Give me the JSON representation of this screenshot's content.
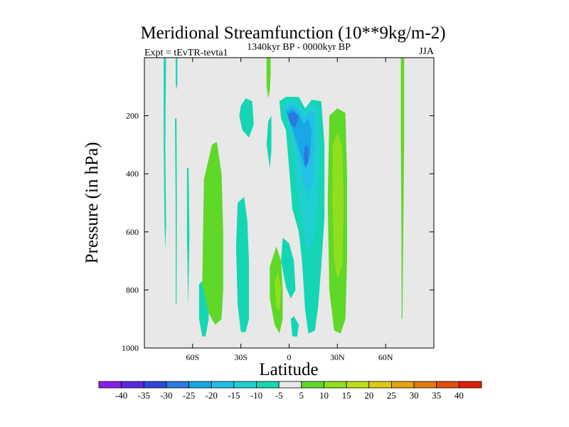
{
  "chart_data": {
    "type": "contour",
    "title": "Meridional Streamfunction (10**9kg/m-2)",
    "subtitle_left": "Expt = tEvTR-tevta1",
    "subtitle_center": "1340kyr BP - 0000kyr BP",
    "subtitle_right": "JJA",
    "xlabel": "Latitude",
    "ylabel": "Pressure (in hPa)",
    "xlim": [
      -90,
      90
    ],
    "ylim": [
      0,
      1000
    ],
    "x_ticks": [
      {
        "value": -60,
        "label": "60S"
      },
      {
        "value": -30,
        "label": "30S"
      },
      {
        "value": 0,
        "label": "0"
      },
      {
        "value": 30,
        "label": "30N"
      },
      {
        "value": 60,
        "label": "60N"
      }
    ],
    "y_ticks": [
      {
        "value": 200,
        "label": "200"
      },
      {
        "value": 400,
        "label": "400"
      },
      {
        "value": 600,
        "label": "600"
      },
      {
        "value": 800,
        "label": "800"
      },
      {
        "value": 1000,
        "label": "1000"
      }
    ],
    "colorbar": {
      "labels": [
        "-40",
        "-35",
        "-30",
        "-25",
        "-20",
        "-15",
        "-10",
        "-5",
        "5",
        "10",
        "15",
        "20",
        "25",
        "30",
        "35",
        "40"
      ],
      "colors": [
        "#8a1ee6",
        "#5a28e0",
        "#3046d8",
        "#2b78e0",
        "#19a6e4",
        "#22c0e6",
        "#1fd0d0",
        "#14d6b4",
        "#e8e8e8",
        "#5fd828",
        "#8ee01e",
        "#c0dc16",
        "#e0c810",
        "#e2a40c",
        "#e27a0c",
        "#e24e0c",
        "#e01e0a"
      ]
    },
    "background_color": "#e8e8e8",
    "regions": [
      {
        "name": "neg-5-strip-78S",
        "color": "#14d6b4",
        "points": [
          [
            -78,
            0
          ],
          [
            -76.5,
            0
          ],
          [
            -77,
            300
          ],
          [
            -76.5,
            580
          ],
          [
            -77,
            660
          ],
          [
            -77.5,
            570
          ],
          [
            -78,
            300
          ]
        ]
      },
      {
        "name": "neg-5-strip-70S-top",
        "color": "#14d6b4",
        "points": [
          [
            -70.5,
            0
          ],
          [
            -69.5,
            0
          ],
          [
            -69.5,
            90
          ],
          [
            -70,
            110
          ],
          [
            -70.5,
            90
          ]
        ]
      },
      {
        "name": "neg-5-strip-70S",
        "color": "#14d6b4",
        "points": [
          [
            -71,
            210
          ],
          [
            -70,
            210
          ],
          [
            -69.8,
            500
          ],
          [
            -70,
            850
          ],
          [
            -70.5,
            850
          ],
          [
            -70.6,
            500
          ]
        ]
      },
      {
        "name": "neg-5-strip-63S",
        "color": "#14d6b4",
        "points": [
          [
            -63.5,
            380
          ],
          [
            -62.5,
            380
          ],
          [
            -62,
            620
          ],
          [
            -62.8,
            860
          ],
          [
            -63.5,
            620
          ]
        ]
      },
      {
        "name": "neg-5-lobe-55S",
        "color": "#14d6b4",
        "points": [
          [
            -56,
            780
          ],
          [
            -52,
            760
          ],
          [
            -50,
            800
          ],
          [
            -50,
            900
          ],
          [
            -52,
            960
          ],
          [
            -54,
            960
          ],
          [
            -56,
            900
          ]
        ]
      },
      {
        "name": "neg-5-region-30S",
        "color": "#14d6b4",
        "points": [
          [
            -32,
            500
          ],
          [
            -28,
            480
          ],
          [
            -26,
            560
          ],
          [
            -25,
            700
          ],
          [
            -25,
            900
          ],
          [
            -27,
            945
          ],
          [
            -30,
            945
          ],
          [
            -32,
            850
          ],
          [
            -33,
            650
          ]
        ]
      },
      {
        "name": "neg-5-blob-30S-upper",
        "color": "#14d6b4",
        "points": [
          [
            -30,
            165
          ],
          [
            -27,
            140
          ],
          [
            -23,
            150
          ],
          [
            -22,
            230
          ],
          [
            -25,
            275
          ],
          [
            -29,
            250
          ],
          [
            -31,
            200
          ]
        ]
      },
      {
        "name": "neg-5-blob-14S",
        "color": "#14d6b4",
        "points": [
          [
            -13,
            220
          ],
          [
            -11,
            200
          ],
          [
            -11,
            320
          ],
          [
            -12,
            380
          ],
          [
            -14,
            300
          ]
        ]
      },
      {
        "name": "neg-5-blob-5S",
        "color": "#14d6b4",
        "points": [
          [
            -4,
            620
          ],
          [
            0,
            640
          ],
          [
            3,
            700
          ],
          [
            4,
            800
          ],
          [
            1,
            830
          ],
          [
            -2,
            790
          ],
          [
            -5,
            700
          ]
        ]
      },
      {
        "name": "neg-5-blob-0N-low",
        "color": "#14d6b4",
        "points": [
          [
            1,
            900
          ],
          [
            3,
            890
          ],
          [
            6,
            920
          ],
          [
            5,
            960
          ],
          [
            2,
            960
          ]
        ]
      },
      {
        "name": "neg-5-tongue-10N",
        "color": "#14d6b4",
        "points": [
          [
            -6,
            150
          ],
          [
            -2,
            135
          ],
          [
            6,
            135
          ],
          [
            10,
            175
          ],
          [
            14,
            145
          ],
          [
            20,
            150
          ],
          [
            22,
            300
          ],
          [
            22,
            550
          ],
          [
            20,
            720
          ],
          [
            18,
            860
          ],
          [
            16,
            940
          ],
          [
            12,
            950
          ],
          [
            10,
            870
          ],
          [
            8,
            700
          ],
          [
            6,
            600
          ],
          [
            2,
            520
          ],
          [
            0,
            380
          ],
          [
            -2,
            250
          ],
          [
            -5,
            210
          ]
        ]
      },
      {
        "name": "neg-10-core",
        "color": "#1fd0d0",
        "points": [
          [
            -4,
            160
          ],
          [
            2,
            145
          ],
          [
            6,
            160
          ],
          [
            10,
            190
          ],
          [
            14,
            160
          ],
          [
            18,
            180
          ],
          [
            19,
            300
          ],
          [
            18,
            500
          ],
          [
            15,
            640
          ],
          [
            11,
            660
          ],
          [
            8,
            560
          ],
          [
            4,
            420
          ],
          [
            2,
            300
          ],
          [
            -1,
            220
          ]
        ]
      },
      {
        "name": "neg-15-core",
        "color": "#22c0e6",
        "points": [
          [
            -3,
            175
          ],
          [
            2,
            160
          ],
          [
            6,
            175
          ],
          [
            9,
            210
          ],
          [
            13,
            180
          ],
          [
            16,
            200
          ],
          [
            16,
            300
          ],
          [
            15,
            420
          ],
          [
            12,
            480
          ],
          [
            9,
            430
          ],
          [
            6,
            340
          ],
          [
            3,
            270
          ],
          [
            0,
            220
          ]
        ]
      },
      {
        "name": "neg-20-core",
        "color": "#19a6e4",
        "points": [
          [
            -2,
            185
          ],
          [
            2,
            175
          ],
          [
            6,
            195
          ],
          [
            9,
            230
          ],
          [
            12,
            210
          ],
          [
            14,
            250
          ],
          [
            13,
            340
          ],
          [
            10,
            380
          ],
          [
            7,
            330
          ],
          [
            4,
            280
          ],
          [
            1,
            230
          ]
        ]
      },
      {
        "name": "neg-25-core",
        "color": "#2b78e0",
        "points": [
          [
            -1,
            195
          ],
          [
            3,
            185
          ],
          [
            6,
            205
          ],
          [
            4,
            240
          ],
          [
            1,
            230
          ]
        ]
      },
      {
        "name": "neg-25-core-2",
        "color": "#2b78e0",
        "points": [
          [
            10,
            300
          ],
          [
            12,
            310
          ],
          [
            12,
            360
          ],
          [
            10,
            380
          ],
          [
            9,
            340
          ]
        ]
      },
      {
        "name": "pos-5-top-12S",
        "color": "#5fd828",
        "points": [
          [
            -14,
            0
          ],
          [
            -11.5,
            0
          ],
          [
            -11.5,
            60
          ],
          [
            -12,
            110
          ],
          [
            -13,
            140
          ],
          [
            -14,
            100
          ]
        ]
      },
      {
        "name": "pos-5-lobe-47S",
        "color": "#5fd828",
        "points": [
          [
            -53,
            420
          ],
          [
            -48,
            300
          ],
          [
            -45,
            290
          ],
          [
            -42,
            400
          ],
          [
            -41,
            600
          ],
          [
            -41,
            800
          ],
          [
            -42,
            900
          ],
          [
            -46,
            920
          ],
          [
            -50,
            880
          ],
          [
            -54,
            780
          ]
        ]
      },
      {
        "name": "pos-5-lobe-10S",
        "color": "#5fd828",
        "points": [
          [
            -12,
            720
          ],
          [
            -8,
            650
          ],
          [
            -5,
            700
          ],
          [
            -4,
            800
          ],
          [
            -4,
            900
          ],
          [
            -6,
            950
          ],
          [
            -9,
            920
          ],
          [
            -12,
            830
          ]
        ]
      },
      {
        "name": "pos-10-core-7S",
        "color": "#8ee01e",
        "points": [
          [
            -9,
            770
          ],
          [
            -7,
            740
          ],
          [
            -5,
            790
          ],
          [
            -6,
            870
          ],
          [
            -8,
            860
          ]
        ]
      },
      {
        "name": "pos-5-lobe-30N",
        "color": "#5fd828",
        "points": [
          [
            25,
            200
          ],
          [
            30,
            175
          ],
          [
            35,
            190
          ],
          [
            36,
            400
          ],
          [
            36,
            700
          ],
          [
            35,
            900
          ],
          [
            32,
            950
          ],
          [
            28,
            940
          ],
          [
            25,
            800
          ],
          [
            24,
            500
          ]
        ]
      },
      {
        "name": "pos-10-core-30N",
        "color": "#8ee01e",
        "points": [
          [
            27,
            300
          ],
          [
            30,
            260
          ],
          [
            33,
            300
          ],
          [
            34,
            500
          ],
          [
            33,
            720
          ],
          [
            30,
            760
          ],
          [
            28,
            700
          ],
          [
            27,
            500
          ]
        ]
      },
      {
        "name": "pos-5-strip-70N",
        "color": "#5fd828",
        "points": [
          [
            69.5,
            0
          ],
          [
            71.5,
            0
          ],
          [
            71.5,
            300
          ],
          [
            71,
            600
          ],
          [
            70.5,
            900
          ],
          [
            70,
            900
          ],
          [
            69.8,
            600
          ],
          [
            69.5,
            300
          ]
        ]
      }
    ]
  }
}
